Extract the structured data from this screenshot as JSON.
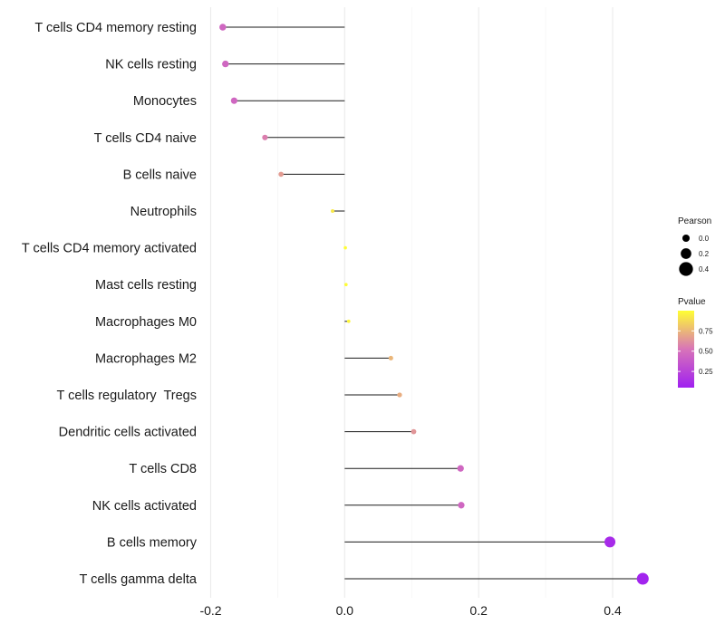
{
  "chart_data": {
    "type": "lollipop",
    "title": "",
    "xlabel": "",
    "ylabel": "",
    "xlim": [
      -0.2,
      0.45
    ],
    "x_ticks": [
      -0.2,
      0.0,
      0.2,
      0.4
    ],
    "x_tick_labels": [
      "-0.2",
      "0.0",
      "0.2",
      "0.4"
    ],
    "grid": true,
    "categories": [
      "T cells CD4 memory resting",
      "NK cells resting",
      "Monocytes",
      "T cells CD4 naive",
      "B cells naive",
      "Neutrophils",
      "T cells CD4 memory activated",
      "Mast cells resting",
      "Macrophages M0",
      "Macrophages M2",
      "T cells regulatory  Tregs",
      "Dendritic cells activated",
      "T cells CD8",
      "NK cells activated",
      "B cells memory",
      "T cells gamma delta"
    ],
    "pearson": [
      -0.182,
      -0.178,
      -0.165,
      -0.119,
      -0.095,
      -0.018,
      0.001,
      0.002,
      0.006,
      0.069,
      0.082,
      0.103,
      0.173,
      0.174,
      0.396,
      0.445
    ],
    "pvalue": [
      0.45,
      0.45,
      0.45,
      0.56,
      0.66,
      0.92,
      0.99,
      0.99,
      0.97,
      0.75,
      0.72,
      0.64,
      0.45,
      0.45,
      0.11,
      0.07
    ],
    "legend_size": {
      "title": "Pearson",
      "labels": [
        "0.0",
        "0.2",
        "0.4"
      ],
      "values": [
        0.0,
        0.2,
        0.4
      ]
    },
    "legend_color": {
      "title": "Pvalue",
      "labels": [
        "0.75",
        "0.50",
        "0.25"
      ],
      "values": [
        0.75,
        0.5,
        0.25
      ],
      "range": [
        0.05,
        1.0
      ],
      "low_color": "#a020f0",
      "mid_color": "#d874b8",
      "high_color": "#ffff33"
    },
    "legend_position": "right"
  }
}
